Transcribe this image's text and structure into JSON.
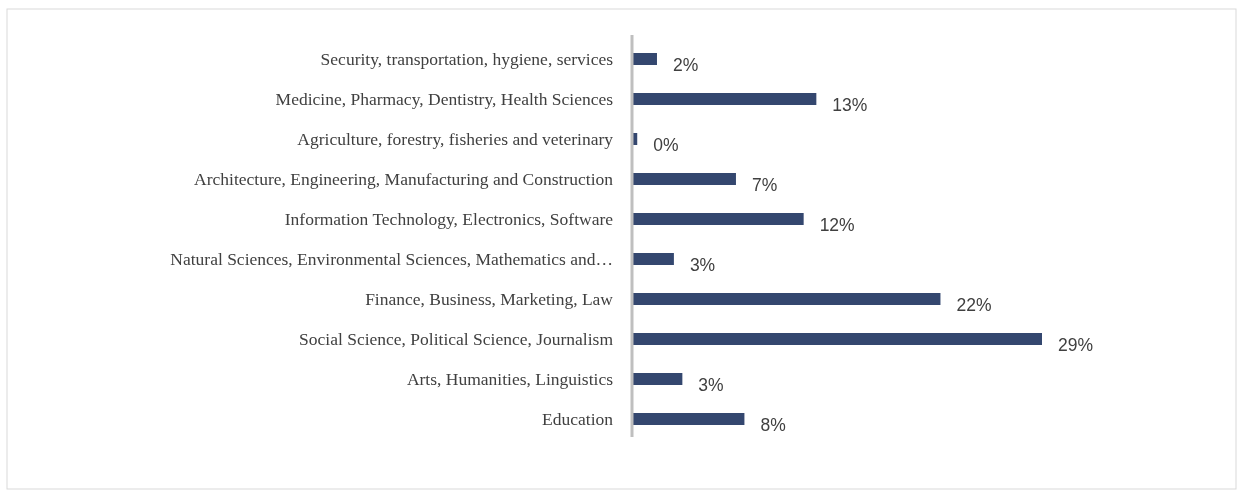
{
  "chart_data": {
    "type": "bar",
    "orientation": "horizontal",
    "categories": [
      "Security, transportation, hygiene, services",
      "Medicine, Pharmacy, Dentistry, Health Sciences",
      "Agriculture, forestry, fisheries and veterinary",
      "Architecture, Engineering, Manufacturing and Construction",
      "Information Technology, Electronics, Software",
      "Natural Sciences, Environmental Sciences, Mathematics and…",
      "Finance, Business, Marketing, Law",
      "Social Science, Political Science, Journalism",
      "Arts, Humanities, Linguistics",
      "Education"
    ],
    "values": [
      1.7,
      13,
      0.3,
      7.3,
      12.1,
      2.9,
      21.8,
      29,
      3.5,
      7.9
    ],
    "value_labels": [
      "2%",
      "13%",
      "0%",
      "7%",
      "12%",
      "3%",
      "22%",
      "29%",
      "3%",
      "8%"
    ],
    "color": "#34476f"
  }
}
